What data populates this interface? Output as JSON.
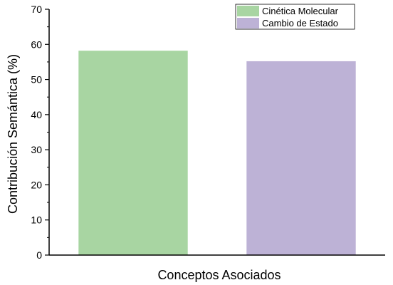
{
  "chart_data": {
    "type": "bar",
    "title": "",
    "xlabel": "Conceptos Asociados",
    "ylabel": "Contribución Semántica (%)",
    "ylim": [
      0,
      70
    ],
    "y_major_ticks": [
      0,
      10,
      20,
      30,
      40,
      50,
      60,
      70
    ],
    "y_minor_step": 5,
    "grid": false,
    "legend_position": "top-right",
    "series": [
      {
        "name": "Cinética Molecular",
        "values": [
          58.2
        ],
        "color": "#a8d5a2"
      },
      {
        "name": "Cambio de Estado",
        "values": [
          55.2
        ],
        "color": "#bdb2d6"
      }
    ]
  }
}
